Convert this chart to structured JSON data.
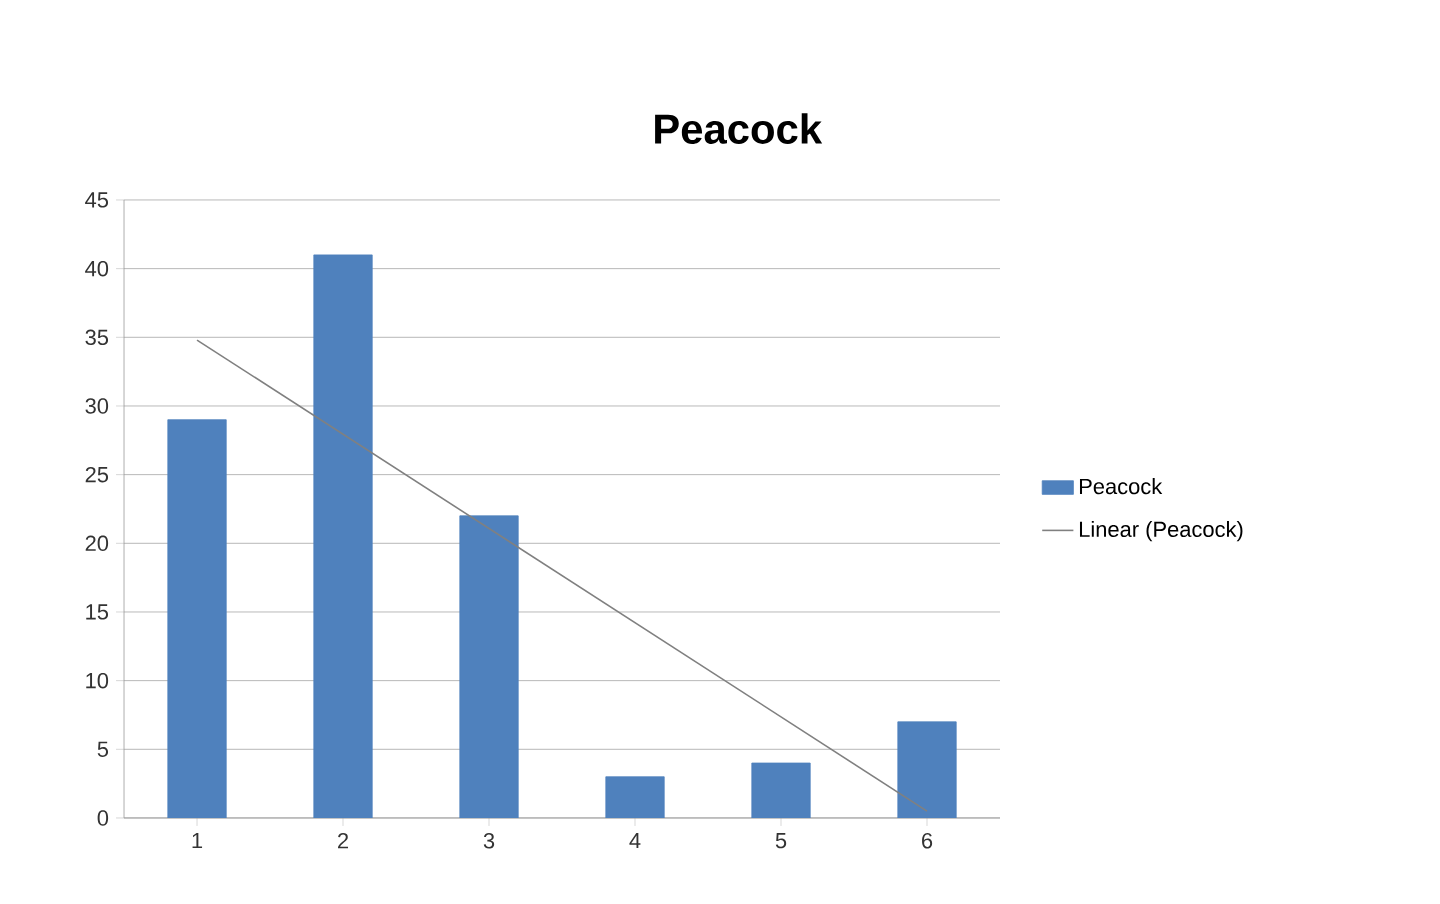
{
  "chart_data": {
    "type": "bar",
    "title": "Peacock",
    "x": [
      1,
      2,
      3,
      4,
      5,
      6
    ],
    "xlim": [
      0.5,
      6.5
    ],
    "xticks": [
      1,
      2,
      3,
      4,
      5,
      6
    ],
    "ylim": [
      0,
      45
    ],
    "yticks": [
      0,
      5,
      10,
      15,
      20,
      25,
      30,
      35,
      40,
      45
    ],
    "grid": "y",
    "legend": "right",
    "series": [
      {
        "name": "Peacock",
        "color": "#4f81bd",
        "values": [
          29,
          41,
          22,
          3,
          4,
          7
        ]
      },
      {
        "name": "Linear (Peacock)",
        "type": "line",
        "color": "#808080",
        "x": [
          1,
          6
        ],
        "values": [
          34.8,
          0.5
        ]
      }
    ]
  }
}
